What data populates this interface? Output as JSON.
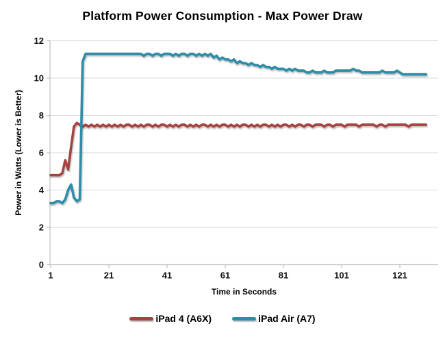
{
  "chart_data": {
    "type": "line",
    "title": "Platform Power Consumption - Max Power Draw",
    "xlabel": "Time in Seconds",
    "ylabel": "Power in Watts (Lower is Better)",
    "x": {
      "start": 1,
      "step": 1,
      "count": 130
    },
    "x_ticks": [
      1,
      21,
      41,
      61,
      81,
      101,
      121
    ],
    "y_ticks": [
      0,
      2,
      4,
      6,
      8,
      10,
      12
    ],
    "ylim": [
      0,
      12
    ],
    "grid": "horizontal",
    "legend_position": "bottom",
    "background_color": "#FFFFFF",
    "gridline_color": "#D9D9D9",
    "axis_color": "#BFBFBF",
    "text_color": "#000000",
    "series": [
      {
        "name": "iPad 4 (A6X)",
        "color": "#A5443E",
        "values": [
          4.8,
          4.8,
          4.8,
          4.8,
          4.9,
          5.6,
          5.1,
          6.3,
          7.4,
          7.6,
          7.5,
          7.4,
          7.5,
          7.4,
          7.5,
          7.4,
          7.5,
          7.4,
          7.5,
          7.4,
          7.5,
          7.4,
          7.5,
          7.4,
          7.5,
          7.4,
          7.5,
          7.5,
          7.4,
          7.5,
          7.4,
          7.5,
          7.4,
          7.5,
          7.5,
          7.4,
          7.5,
          7.4,
          7.5,
          7.5,
          7.4,
          7.5,
          7.4,
          7.5,
          7.4,
          7.5,
          7.5,
          7.4,
          7.5,
          7.4,
          7.5,
          7.4,
          7.5,
          7.5,
          7.4,
          7.5,
          7.4,
          7.5,
          7.4,
          7.5,
          7.5,
          7.4,
          7.5,
          7.4,
          7.5,
          7.4,
          7.5,
          7.5,
          7.4,
          7.5,
          7.4,
          7.5,
          7.4,
          7.5,
          7.5,
          7.4,
          7.5,
          7.4,
          7.5,
          7.4,
          7.5,
          7.5,
          7.4,
          7.5,
          7.4,
          7.5,
          7.5,
          7.4,
          7.5,
          7.5,
          7.4,
          7.5,
          7.5,
          7.5,
          7.4,
          7.5,
          7.5,
          7.4,
          7.5,
          7.5,
          7.5,
          7.4,
          7.5,
          7.5,
          7.5,
          7.5,
          7.4,
          7.5,
          7.5,
          7.5,
          7.5,
          7.5,
          7.4,
          7.5,
          7.5,
          7.4,
          7.5,
          7.5,
          7.5,
          7.5,
          7.5,
          7.5,
          7.5,
          7.4,
          7.5,
          7.5,
          7.5,
          7.5,
          7.5,
          7.5
        ]
      },
      {
        "name": "iPad Air (A7)",
        "color": "#2E8DA8",
        "values": [
          3.3,
          3.3,
          3.4,
          3.4,
          3.3,
          3.5,
          4.0,
          4.3,
          3.6,
          3.4,
          3.5,
          10.9,
          11.3,
          11.3,
          11.3,
          11.3,
          11.3,
          11.3,
          11.3,
          11.3,
          11.3,
          11.3,
          11.3,
          11.3,
          11.3,
          11.3,
          11.3,
          11.3,
          11.3,
          11.3,
          11.3,
          11.3,
          11.2,
          11.3,
          11.3,
          11.2,
          11.3,
          11.3,
          11.2,
          11.3,
          11.3,
          11.3,
          11.2,
          11.3,
          11.2,
          11.3,
          11.3,
          11.2,
          11.3,
          11.3,
          11.2,
          11.3,
          11.2,
          11.3,
          11.2,
          11.3,
          11.1,
          11.2,
          11.0,
          11.1,
          11.0,
          11.0,
          10.9,
          11.0,
          10.8,
          10.9,
          10.8,
          10.8,
          10.7,
          10.8,
          10.7,
          10.7,
          10.6,
          10.7,
          10.6,
          10.6,
          10.5,
          10.6,
          10.5,
          10.5,
          10.5,
          10.4,
          10.5,
          10.4,
          10.5,
          10.4,
          10.4,
          10.4,
          10.3,
          10.3,
          10.4,
          10.3,
          10.3,
          10.3,
          10.4,
          10.3,
          10.3,
          10.3,
          10.4,
          10.4,
          10.4,
          10.4,
          10.4,
          10.4,
          10.5,
          10.4,
          10.4,
          10.3,
          10.3,
          10.3,
          10.3,
          10.3,
          10.3,
          10.3,
          10.4,
          10.3,
          10.3,
          10.3,
          10.3,
          10.4,
          10.3,
          10.2,
          10.2,
          10.2,
          10.2,
          10.2,
          10.2,
          10.2,
          10.2,
          10.2
        ]
      }
    ]
  }
}
